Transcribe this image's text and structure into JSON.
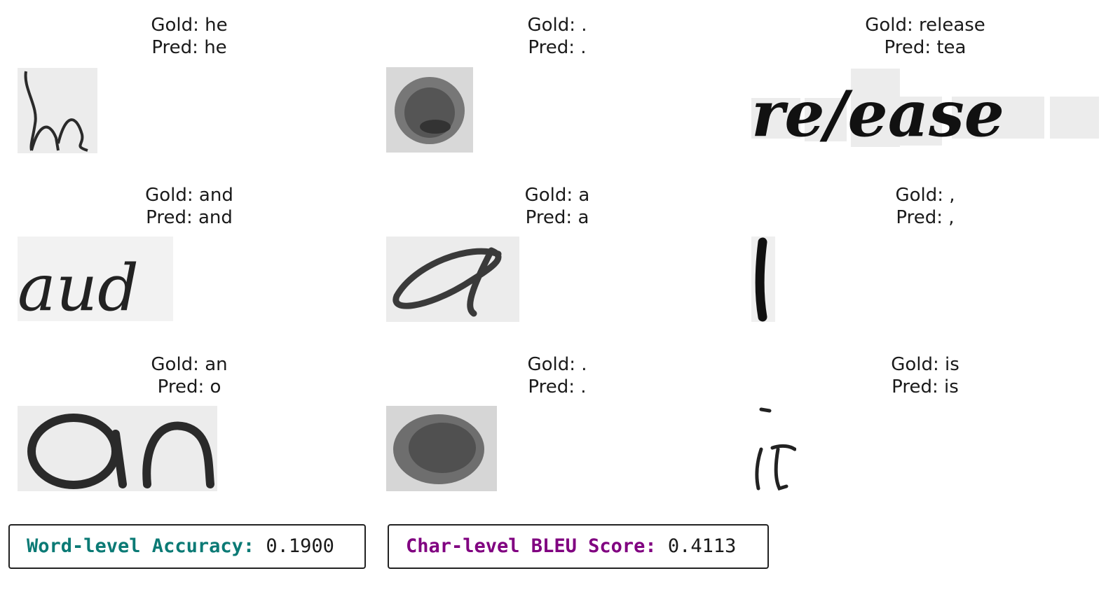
{
  "samples": [
    {
      "gold": "Gold: he",
      "pred": "Pred: he",
      "image": "handwritten-he"
    },
    {
      "gold": "Gold: .",
      "pred": "Pred: .",
      "image": "blurred-period"
    },
    {
      "gold": "Gold: release",
      "pred": "Pred: tea",
      "image": "handwritten-release"
    },
    {
      "gold": "Gold: and",
      "pred": "Pred: and",
      "image": "handwritten-and"
    },
    {
      "gold": "Gold: a",
      "pred": "Pred: a",
      "image": "handwritten-a"
    },
    {
      "gold": "Gold: ,",
      "pred": "Pred: ,",
      "image": "handwritten-comma"
    },
    {
      "gold": "Gold: an",
      "pred": "Pred: o",
      "image": "handwritten-an"
    },
    {
      "gold": "Gold: .",
      "pred": "Pred: .",
      "image": "blurred-period"
    },
    {
      "gold": "Gold: is",
      "pred": "Pred: is",
      "image": "handwritten-is"
    }
  ],
  "metrics": {
    "word_label": "Word-level Accuracy:",
    "word_value": " 0.1900",
    "char_label": "Char-level BLEU Score:",
    "char_value": " 0.4113"
  },
  "colors": {
    "word_label": "#0b7a75",
    "char_label": "#800080"
  }
}
